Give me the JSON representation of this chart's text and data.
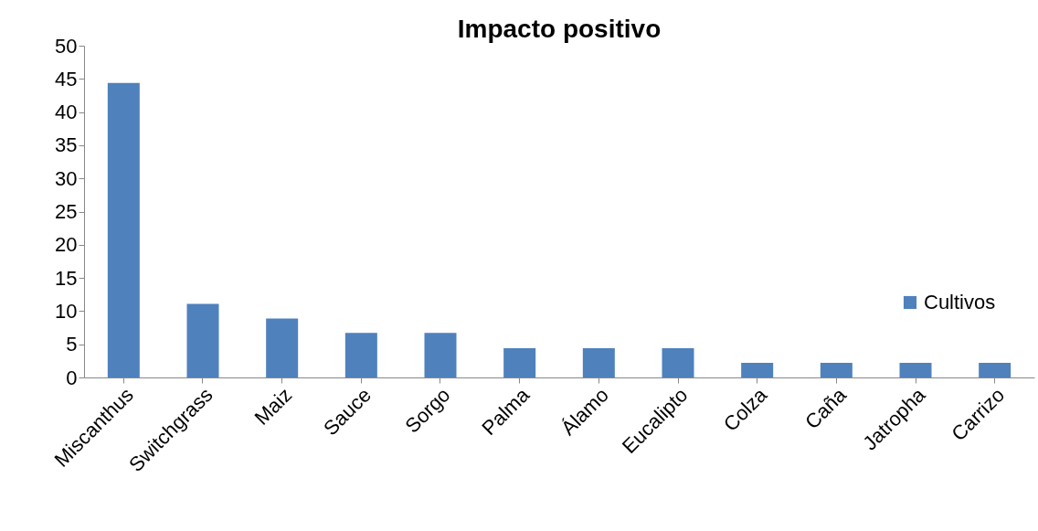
{
  "chart_data": {
    "type": "bar",
    "title": "Impacto positivo",
    "categories": [
      "Miscanthus",
      "Switchgrass",
      "Maiz",
      "Sauce",
      "Sorgo",
      "Palma",
      "Álamo",
      "Eucalipto",
      "Colza",
      "Caña",
      "Jatropha",
      "Carrizo"
    ],
    "series": [
      {
        "name": "Cultivos",
        "color": "#4f81bd",
        "values": [
          44.4,
          11.1,
          8.9,
          6.7,
          6.7,
          4.4,
          4.4,
          4.4,
          2.2,
          2.2,
          2.2,
          2.2
        ]
      }
    ],
    "ylim": [
      0,
      50
    ],
    "yticks": [
      0,
      5,
      10,
      15,
      20,
      25,
      30,
      35,
      40,
      45,
      50
    ],
    "grid": false,
    "legend": "right"
  }
}
